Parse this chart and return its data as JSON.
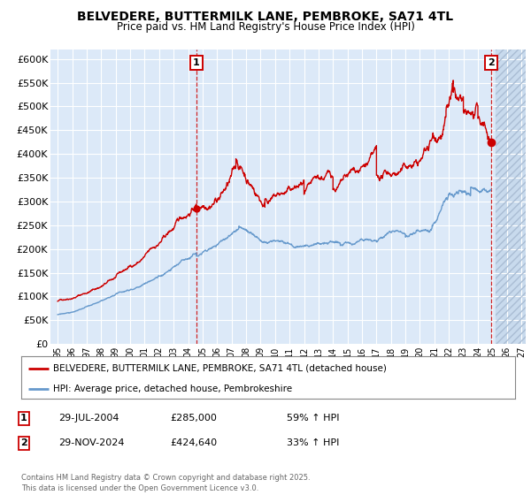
{
  "title": "BELVEDERE, BUTTERMILK LANE, PEMBROKE, SA71 4TL",
  "subtitle": "Price paid vs. HM Land Registry's House Price Index (HPI)",
  "ylim": [
    0,
    620000
  ],
  "yticks": [
    0,
    50000,
    100000,
    150000,
    200000,
    250000,
    300000,
    350000,
    400000,
    450000,
    500000,
    550000,
    600000
  ],
  "xstart": 1994.5,
  "xend": 2027.3,
  "xtick_years": [
    1995,
    1996,
    1997,
    1998,
    1999,
    2000,
    2001,
    2002,
    2003,
    2004,
    2005,
    2006,
    2007,
    2008,
    2009,
    2010,
    2011,
    2012,
    2013,
    2014,
    2015,
    2016,
    2017,
    2018,
    2019,
    2020,
    2021,
    2022,
    2023,
    2024,
    2025,
    2026,
    2027
  ],
  "sale1_x": 2004.575,
  "sale1_y": 285000,
  "sale2_x": 2024.915,
  "sale2_y": 424640,
  "sale1_label": "1",
  "sale2_label": "2",
  "plot_bg_color": "#dce9f8",
  "grid_color": "#ffffff",
  "red_line_color": "#cc0000",
  "blue_line_color": "#6699cc",
  "future_start": 2025.25,
  "legend_entry1": "BELVEDERE, BUTTERMILK LANE, PEMBROKE, SA71 4TL (detached house)",
  "legend_entry2": "HPI: Average price, detached house, Pembrokeshire",
  "ann1_date": "29-JUL-2004",
  "ann1_price": "£285,000",
  "ann1_hpi": "59% ↑ HPI",
  "ann2_date": "29-NOV-2024",
  "ann2_price": "£424,640",
  "ann2_hpi": "33% ↑ HPI",
  "footer": "Contains HM Land Registry data © Crown copyright and database right 2025.\nThis data is licensed under the Open Government Licence v3.0."
}
